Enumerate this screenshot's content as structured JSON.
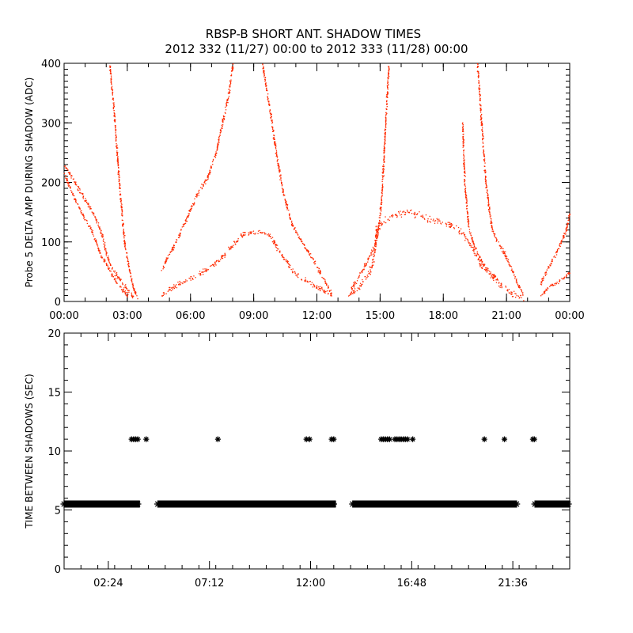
{
  "figure": {
    "title_line1": "RBSP-B SHORT ANT. SHADOW TIMES",
    "title_line2": "2012 332 (11/27) 00:00 to 2012 333 (11/28) 00:00"
  },
  "colors": {
    "top_points": "#ff2a00",
    "bottom_points": "#000000",
    "axes": "#000000",
    "background": "#ffffff"
  },
  "chart_data": [
    {
      "type": "scatter",
      "title": "",
      "xlabel": "",
      "ylabel": "Probe 5 DELTA AMP DURING SHADOW (ADC)",
      "x_unit": "hours",
      "xlim": [
        0,
        24
      ],
      "ylim": [
        0,
        400
      ],
      "x_ticks": [
        0,
        3,
        6,
        9,
        12,
        15,
        18,
        21,
        24
      ],
      "x_tick_labels": [
        "00:00",
        "03:00",
        "06:00",
        "09:00",
        "12:00",
        "15:00",
        "18:00",
        "21:00",
        "00:00"
      ],
      "y_ticks": [
        0,
        100,
        200,
        300,
        400
      ],
      "y_tick_labels": [
        "0",
        "100",
        "200",
        "300",
        "400"
      ],
      "grid": false,
      "marker": "dot",
      "series": [
        {
          "color": "#ff2a00",
          "branches": [
            {
              "points": [
                [
                  0.0,
                  230
                ],
                [
                  0.5,
                  200
                ],
                [
                  1.0,
                  170
                ],
                [
                  1.5,
                  140
                ],
                [
                  1.8,
                  110
                ],
                [
                  2.0,
                  80
                ],
                [
                  2.2,
                  60
                ],
                [
                  2.6,
                  40
                ],
                [
                  3.0,
                  20
                ],
                [
                  3.3,
                  5
                ]
              ],
              "spread": 12
            },
            {
              "points": [
                [
                  0.0,
                  215
                ],
                [
                  0.4,
                  180
                ],
                [
                  0.8,
                  150
                ],
                [
                  1.3,
                  120
                ],
                [
                  1.7,
                  80
                ],
                [
                  2.1,
                  55
                ],
                [
                  2.5,
                  30
                ],
                [
                  3.0,
                  10
                ]
              ],
              "spread": 10
            },
            {
              "points": [
                [
                  2.15,
                  400
                ],
                [
                  2.4,
                  300
                ],
                [
                  2.6,
                  200
                ],
                [
                  2.85,
                  100
                ],
                [
                  3.1,
                  50
                ],
                [
                  3.3,
                  20
                ],
                [
                  3.5,
                  5
                ]
              ],
              "spread": 6
            },
            {
              "points": [
                [
                  4.6,
                  10
                ],
                [
                  5.2,
                  25
                ],
                [
                  6.0,
                  40
                ],
                [
                  6.8,
                  55
                ],
                [
                  7.5,
                  75
                ],
                [
                  8.0,
                  95
                ],
                [
                  8.5,
                  115
                ],
                [
                  9.2,
                  118
                ],
                [
                  9.8,
                  110
                ],
                [
                  10.3,
                  80
                ],
                [
                  11.0,
                  45
                ],
                [
                  12.0,
                  25
                ],
                [
                  12.7,
                  10
                ]
              ],
              "spread": 12
            },
            {
              "points": [
                [
                  4.6,
                  50
                ],
                [
                  4.9,
                  75
                ],
                [
                  5.3,
                  100
                ],
                [
                  5.8,
                  140
                ],
                [
                  6.3,
                  180
                ],
                [
                  6.8,
                  210
                ],
                [
                  7.2,
                  250
                ],
                [
                  7.5,
                  300
                ],
                [
                  7.8,
                  350
                ],
                [
                  8.0,
                  400
                ]
              ],
              "spread": 12
            },
            {
              "points": [
                [
                  9.4,
                  400
                ],
                [
                  9.8,
                  310
                ],
                [
                  10.1,
                  240
                ],
                [
                  10.4,
                  180
                ],
                [
                  10.8,
                  130
                ],
                [
                  11.3,
                  100
                ],
                [
                  11.8,
                  70
                ],
                [
                  12.3,
                  40
                ],
                [
                  12.7,
                  10
                ]
              ],
              "spread": 12
            },
            {
              "points": [
                [
                  13.5,
                  10
                ],
                [
                  14.0,
                  25
                ],
                [
                  14.5,
                  50
                ],
                [
                  14.7,
                  75
                ],
                [
                  14.8,
                  120
                ],
                [
                  15.3,
                  140
                ],
                [
                  16.3,
                  150
                ],
                [
                  17.3,
                  140
                ],
                [
                  18.3,
                  130
                ],
                [
                  18.9,
                  115
                ],
                [
                  19.4,
                  90
                ],
                [
                  19.8,
                  60
                ],
                [
                  20.5,
                  35
                ],
                [
                  21.2,
                  15
                ],
                [
                  21.8,
                  5
                ]
              ],
              "spread": 18
            },
            {
              "points": [
                [
                  13.6,
                  20
                ],
                [
                  14.0,
                  45
                ],
                [
                  14.4,
                  70
                ],
                [
                  14.8,
                  100
                ],
                [
                  15.0,
                  150
                ],
                [
                  15.1,
                  200
                ],
                [
                  15.2,
                  270
                ],
                [
                  15.3,
                  340
                ],
                [
                  15.4,
                  400
                ]
              ],
              "spread": 12
            },
            {
              "points": [
                [
                  18.9,
                  300
                ],
                [
                  19.0,
                  200
                ],
                [
                  19.2,
                  120
                ],
                [
                  19.5,
                  90
                ],
                [
                  19.9,
                  60
                ],
                [
                  20.5,
                  40
                ]
              ],
              "spread": 12
            },
            {
              "points": [
                [
                  19.6,
                  400
                ],
                [
                  19.8,
                  300
                ],
                [
                  20.0,
                  200
                ],
                [
                  20.3,
                  120
                ],
                [
                  20.9,
                  80
                ],
                [
                  21.4,
                  40
                ],
                [
                  21.8,
                  10
                ]
              ],
              "spread": 12
            },
            {
              "points": [
                [
                  22.6,
                  10
                ],
                [
                  23.0,
                  25
                ],
                [
                  23.5,
                  35
                ],
                [
                  24.0,
                  50
                ]
              ],
              "spread": 8
            },
            {
              "points": [
                [
                  22.6,
                  30
                ],
                [
                  23.0,
                  60
                ],
                [
                  23.4,
                  85
                ],
                [
                  23.8,
                  120
                ],
                [
                  24.0,
                  150
                ]
              ],
              "spread": 10
            }
          ]
        }
      ]
    },
    {
      "type": "scatter",
      "title": "",
      "xlabel": "",
      "ylabel": "TIME BETWEEN SHADOWS (SEC)",
      "x_unit": "hours",
      "xlim": [
        0.3,
        24.3
      ],
      "ylim": [
        0,
        20
      ],
      "x_ticks": [
        2.4,
        7.2,
        12.0,
        16.8,
        21.6
      ],
      "x_tick_labels": [
        "02:24",
        "07:12",
        "12:00",
        "16:48",
        "21:36"
      ],
      "y_ticks": [
        0,
        5,
        10,
        15,
        20
      ],
      "y_tick_labels": [
        "0",
        "5",
        "10",
        "15",
        "20"
      ],
      "grid": false,
      "marker": "asterisk",
      "series": [
        {
          "color": "#000000",
          "baseline": {
            "y": 5.5,
            "segments": [
              [
                0.3,
                3.9
              ],
              [
                4.75,
                13.2
              ],
              [
                14.0,
                21.8
              ],
              [
                22.65,
                24.3
              ]
            ]
          },
          "points": [
            [
              3.5,
              11
            ],
            [
              3.6,
              11
            ],
            [
              3.7,
              11
            ],
            [
              3.8,
              11
            ],
            [
              4.2,
              11
            ],
            [
              7.6,
              11
            ],
            [
              11.8,
              11
            ],
            [
              11.95,
              11
            ],
            [
              13.0,
              11
            ],
            [
              13.1,
              11
            ],
            [
              15.35,
              11
            ],
            [
              15.45,
              11
            ],
            [
              15.55,
              11
            ],
            [
              15.65,
              11
            ],
            [
              15.75,
              11
            ],
            [
              16.0,
              11
            ],
            [
              16.1,
              11
            ],
            [
              16.2,
              11
            ],
            [
              16.3,
              11
            ],
            [
              16.4,
              11
            ],
            [
              16.5,
              11
            ],
            [
              16.6,
              11
            ],
            [
              16.85,
              11
            ],
            [
              20.25,
              11
            ],
            [
              21.2,
              11
            ],
            [
              22.55,
              11
            ],
            [
              22.62,
              11
            ]
          ]
        }
      ]
    }
  ]
}
